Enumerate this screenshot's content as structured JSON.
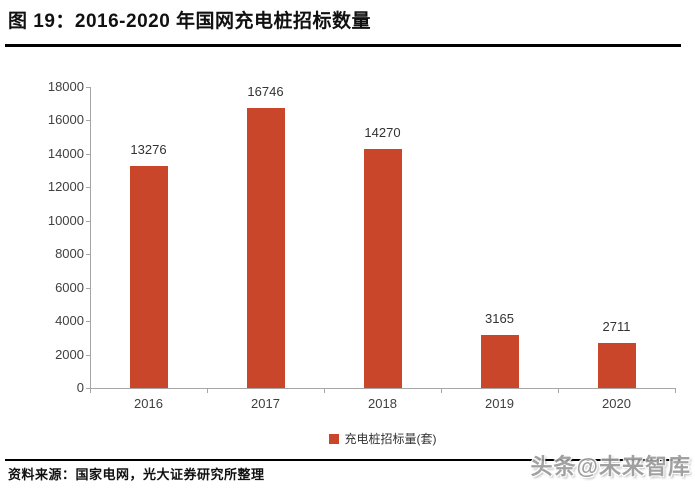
{
  "header": {
    "title": "图 19：2016-2020 年国网充电桩招标数量"
  },
  "footer": {
    "source": "资料来源：国家电网，光大证券研究所整理",
    "watermark": "头条@未来智库"
  },
  "chart_data": {
    "type": "bar",
    "title": "2016-2020 年国网充电桩招标数量",
    "categories": [
      "2016",
      "2017",
      "2018",
      "2019",
      "2020"
    ],
    "values": [
      13276,
      16746,
      14270,
      3165,
      2711
    ],
    "series_name": "充电桩招标量(套)",
    "legend": [
      "充电桩招标量(套)"
    ],
    "legend_position": "bottom",
    "xlabel": "",
    "ylabel": "",
    "ylim": [
      0,
      18000
    ],
    "ytick_step": 2000,
    "grid": false,
    "data_labels_shown": true,
    "colors": {
      "bar": "#c9462b",
      "axis": "#a6a6a6",
      "tick_label": "#404040",
      "value_label": "#333333",
      "title_text": "#111111",
      "rule": "#000000",
      "watermark": "#9a9a9a"
    }
  }
}
